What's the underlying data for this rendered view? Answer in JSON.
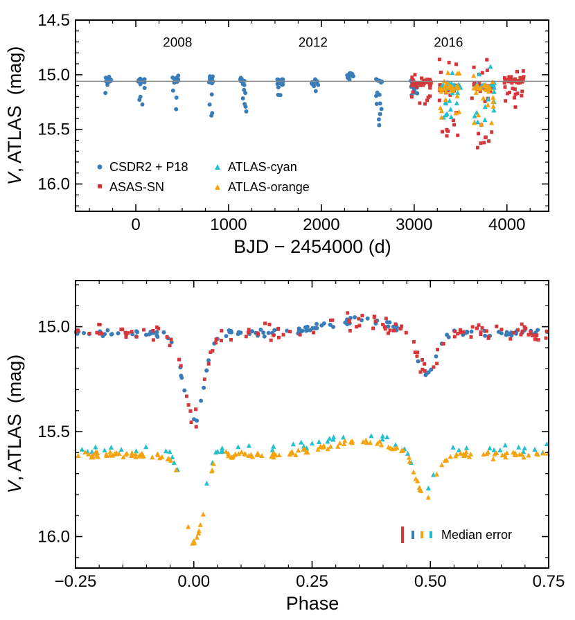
{
  "colors": {
    "csdr2": "#3a7cb8",
    "asassn": "#d6373a",
    "cyan": "#22c0cf",
    "orange": "#f5a30e",
    "reference_line": "#888888"
  },
  "chart_data": [
    {
      "type": "scatter",
      "title": "",
      "xlabel": "BJD − 2454000 (d)",
      "ylabel_italic": "V",
      "ylabel_rest": ", ATLAS  (mag)",
      "xlim": [
        -650,
        4450
      ],
      "ylim": [
        16.25,
        14.5
      ],
      "y_inverted": true,
      "x_ticks": [
        0,
        1000,
        2000,
        3000,
        4000
      ],
      "x_tick_labels": [
        "0",
        "1000",
        "2000",
        "3000",
        "4000"
      ],
      "y_ticks": [
        14.5,
        15.0,
        15.5,
        16.0
      ],
      "y_tick_labels": [
        "14.5",
        "15.0",
        "15.5",
        "16.0"
      ],
      "reference_line_y": 15.06,
      "annotations": [
        {
          "x": 450,
          "y": 14.7,
          "text": "2008"
        },
        {
          "x": 1910,
          "y": 14.7,
          "text": "2012"
        },
        {
          "x": 3370,
          "y": 14.7,
          "text": "2016"
        }
      ],
      "legend": [
        {
          "label": "CSDR2 + P18",
          "series": "csdr2",
          "marker": "circle"
        },
        {
          "label": "ATLAS-cyan",
          "series": "cyan",
          "marker": "triangle"
        },
        {
          "label": "ASAS-SN",
          "series": "asassn",
          "marker": "square"
        },
        {
          "label": "ATLAS-orange",
          "series": "orange",
          "marker": "triangle"
        }
      ],
      "legend_location": "lower-left",
      "series": [
        {
          "name": "CSDR2 + P18",
          "color_key": "csdr2",
          "marker": "circle",
          "seasons": [
            [
              -300,
              15.05,
              0.32
            ],
            [
              60,
              15.05,
              0.28
            ],
            [
              430,
              15.04,
              0.42
            ],
            [
              800,
              15.05,
              0.38
            ],
            [
              1160,
              15.06,
              0.3
            ],
            [
              1560,
              15.06,
              0.15
            ],
            [
              1930,
              15.07,
              0.12
            ],
            [
              2310,
              15.0,
              0.05
            ],
            [
              2620,
              15.05,
              0.45
            ],
            [
              3000,
              15.1,
              0.12
            ]
          ]
        },
        {
          "name": "ASAS-SN",
          "color_key": "asassn",
          "marker": "square",
          "seasons": [
            [
              3080,
              15.07,
              0.25
            ],
            [
              3380,
              15.12,
              0.55
            ],
            [
              3730,
              15.12,
              0.55
            ],
            [
              4080,
              15.05,
              0.25
            ]
          ]
        },
        {
          "name": "ATLAS-cyan",
          "color_key": "cyan",
          "marker": "triangle",
          "seasons": [
            [
              3410,
              15.1,
              0.3
            ],
            [
              3760,
              15.1,
              0.35
            ]
          ]
        },
        {
          "name": "ATLAS-orange",
          "color_key": "orange",
          "marker": "triangle",
          "seasons": [
            [
              3380,
              15.12,
              0.3
            ],
            [
              3750,
              15.12,
              0.35
            ]
          ]
        }
      ]
    },
    {
      "type": "scatter",
      "title": "",
      "xlabel": "Phase",
      "ylabel_italic": "V",
      "ylabel_rest": ", ATLAS  (mag)",
      "xlim": [
        -0.25,
        0.75
      ],
      "ylim": [
        16.15,
        14.78
      ],
      "y_inverted": true,
      "x_ticks": [
        -0.25,
        0.0,
        0.25,
        0.5,
        0.75
      ],
      "x_tick_labels": [
        "−0.25",
        "0.00",
        "0.25",
        "0.50",
        "0.75"
      ],
      "y_ticks": [
        15.0,
        15.5,
        16.0
      ],
      "y_tick_labels": [
        "15.0",
        "15.5",
        "16.0"
      ],
      "median_error_label": "Median error",
      "series": [
        {
          "name": "CSDR2 + P18",
          "color_key": "csdr2",
          "marker": "circle",
          "base": 15.03
        },
        {
          "name": "ASAS-SN",
          "color_key": "asassn",
          "marker": "square",
          "base": 15.03
        },
        {
          "name": "ATLAS-cyan",
          "color_key": "cyan",
          "marker": "triangle",
          "base": 15.58
        },
        {
          "name": "ATLAS-orange",
          "color_key": "orange",
          "marker": "triangle",
          "base": 15.61
        }
      ],
      "primary_eclipse": {
        "phase": 0.0,
        "depth": 0.42,
        "width": 0.03
      },
      "secondary_eclipse": {
        "phase": 0.49,
        "depth": 0.2,
        "width": 0.03
      }
    }
  ]
}
